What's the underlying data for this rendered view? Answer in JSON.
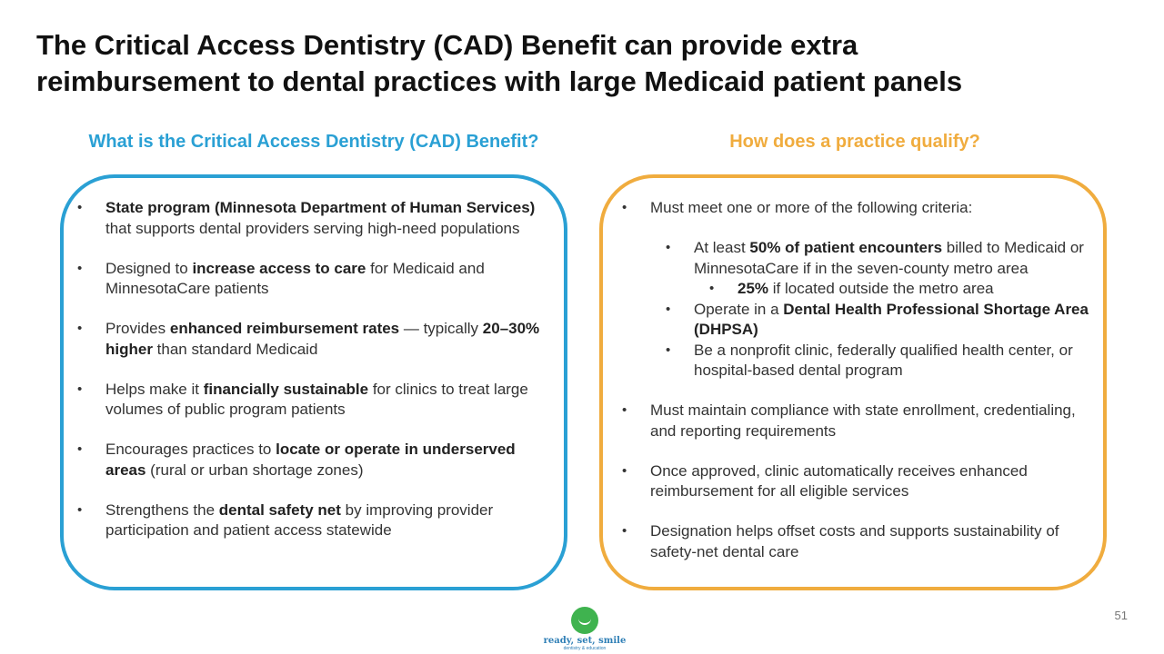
{
  "slide": {
    "title_line1": "The Critical Access Dentistry (CAD) Benefit can provide extra",
    "title_line2": "reimbursement to dental practices with large Medicaid patient panels",
    "page_number": "51"
  },
  "left": {
    "heading": "What is the Critical Access Dentistry (CAD) Benefit?",
    "bullets": [
      {
        "b1": "State program (Minnesota Department of Human Services)",
        "t1": " that supports dental providers serving high-need populations"
      },
      {
        "t0": "Designed to ",
        "b1": "increase access to care",
        "t1": " for Medicaid and MinnesotaCare patients"
      },
      {
        "t0": "Provides ",
        "b1": "enhanced reimbursement rates",
        "t1": " — typically ",
        "b2": "20–30% higher",
        "t2": " than standard Medicaid"
      },
      {
        "t0": "Helps make it ",
        "b1": "financially sustainable",
        "t1": " for clinics to treat large volumes of public program patients"
      },
      {
        "t0": "Encourages practices to ",
        "b1": "locate or operate in underserved areas",
        "t1": " (rural or urban shortage zones)"
      },
      {
        "t0": "Strengthens the ",
        "b1": "dental safety net",
        "t1": " by improving provider participation and patient access statewide"
      }
    ]
  },
  "right": {
    "heading": "How does a practice qualify?",
    "intro": "Must meet one or more of the following criteria:",
    "criteria": [
      {
        "t0": "At least ",
        "b1": "50% of patient encounters",
        "t1": " billed to Medicaid or MinnesotaCare if in the seven-county metro area"
      },
      {
        "b1": "25%",
        "t1": " if located outside the metro area"
      },
      {
        "t0": "Operate in a ",
        "b1": "Dental Health Professional Shortage Area (DHPSA)"
      },
      {
        "t0": "Be a nonprofit clinic, federally qualified health center, or hospital-based dental program"
      }
    ],
    "bullets": [
      "Must maintain compliance with state enrollment, credentialing, and reporting requirements",
      "Once approved, clinic automatically receives enhanced reimbursement for all eligible services",
      "Designation helps offset costs and supports sustainability of safety-net dental care"
    ]
  },
  "logo": {
    "text": "ready, set, smile",
    "subtext": "dentistry & education"
  },
  "colors": {
    "left_accent": "#2aa0d4",
    "right_accent": "#f0ac3e",
    "logo_green": "#3fb34f"
  },
  "icons": {
    "bullet": "•"
  }
}
